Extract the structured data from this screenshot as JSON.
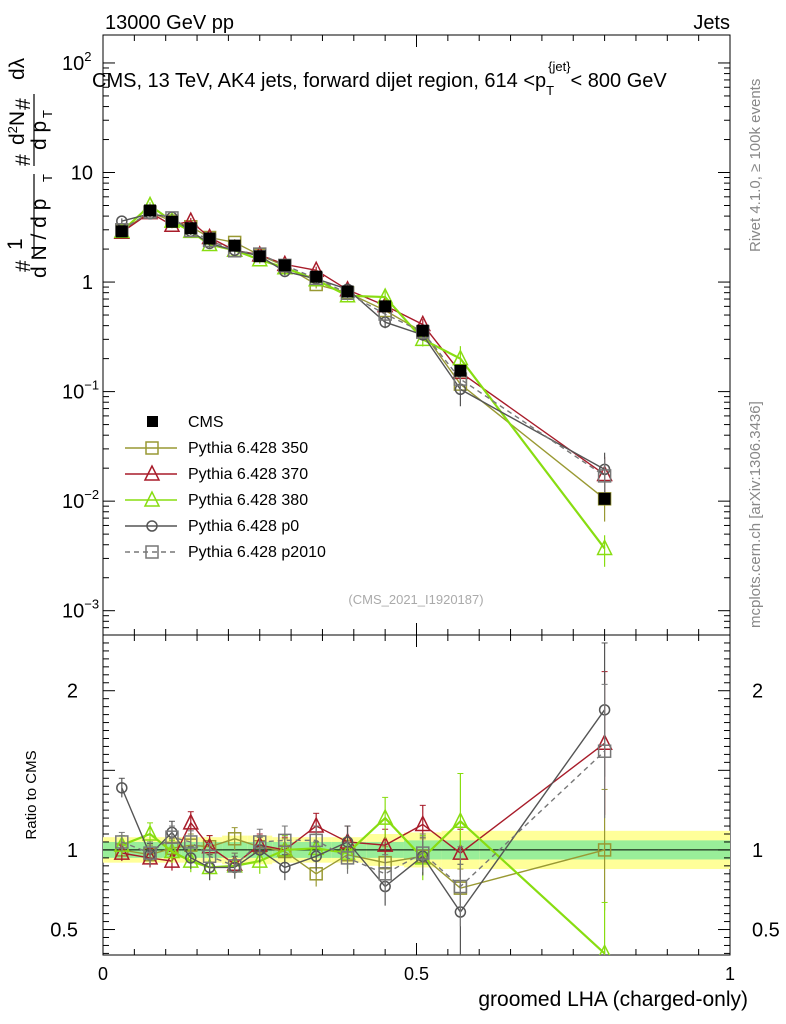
{
  "header": {
    "left": "13000 GeV pp",
    "right": "Jets"
  },
  "side_labels": {
    "rivet": "Rivet 4.1.0, ≥ 100k events",
    "mcplots": "mcplots.cern.ch [arXiv:1306.3436]"
  },
  "chart_data": {
    "type": "line",
    "title": "CMS, 13 TeV, AK4 jets, forward dijet region, 614 <p_T^{jet}< 800 GeV",
    "title_parts": {
      "main": "CMS, 13 TeV, AK4 jets, forward dijet region, 614 <p",
      "sub": "T",
      "sup": "{jet}",
      "tail": "< 800 GeV"
    },
    "watermark": "(CMS_2021_I1920187)",
    "xlabel": "groomed LHA (charged-only)",
    "ylabel": "1/dN/dp_T d²N/dp_T dλ",
    "ylabel_parts": {
      "hash1": "#",
      "one": "1",
      "dN": "d N / d p",
      "T1": "T",
      "hash2": "#",
      "d2N": "d",
      "two": "2",
      "N": "N",
      "hash3": "#",
      "dp": "d p",
      "T2": "T",
      "dl": "d",
      "lambda": "λ"
    },
    "ratio_ylabel": "Ratio to CMS",
    "xlim": [
      0,
      1
    ],
    "x_ticks": [
      "0",
      "0.5",
      "1"
    ],
    "main_ylim": [
      0.0006,
      180
    ],
    "main_yscale": "log",
    "main_y_ticks": [
      {
        "v": 100,
        "base": "10",
        "exp": "2"
      },
      {
        "v": 10,
        "base": "10",
        "exp": ""
      },
      {
        "v": 1,
        "base": "1",
        "exp": ""
      },
      {
        "v": 0.1,
        "base": "10",
        "exp": "−1"
      },
      {
        "v": 0.01,
        "base": "10",
        "exp": "−2"
      },
      {
        "v": 0.001,
        "base": "10",
        "exp": "−3"
      }
    ],
    "ratio_ylim": [
      0.34,
      2.35
    ],
    "ratio_y_ticks": [
      "0.5",
      "1",
      "2"
    ],
    "ratio_y_tick_values": [
      0.5,
      1,
      2
    ],
    "bin_edges": [
      0.0,
      0.055,
      0.095,
      0.125,
      0.155,
      0.19,
      0.23,
      0.27,
      0.315,
      0.365,
      0.42,
      0.48,
      0.54,
      0.6,
      1.0
    ],
    "x": [
      0.03,
      0.075,
      0.11,
      0.14,
      0.17,
      0.21,
      0.25,
      0.29,
      0.34,
      0.39,
      0.45,
      0.51,
      0.57,
      0.8
    ],
    "cms": {
      "name": "CMS",
      "values": [
        2.9,
        4.5,
        3.55,
        3.1,
        2.5,
        2.15,
        1.72,
        1.42,
        1.12,
        0.82,
        0.6,
        0.36,
        0.155,
        0.0105
      ],
      "band_inner": [
        0.05,
        0.05,
        0.05,
        0.05,
        0.05,
        0.05,
        0.05,
        0.05,
        0.05,
        0.05,
        0.05,
        0.06,
        0.06,
        0.06
      ],
      "band_outer": [
        0.08,
        0.08,
        0.08,
        0.08,
        0.08,
        0.09,
        0.09,
        0.08,
        0.08,
        0.08,
        0.1,
        0.11,
        0.12,
        0.12
      ]
    },
    "series": [
      {
        "name": "Pythia 6.428 350",
        "color": "#999933",
        "marker": "square",
        "dashed": false,
        "values": [
          2.95,
          4.35,
          3.6,
          3.2,
          2.55,
          2.3,
          1.76,
          1.4,
          0.95,
          0.8,
          0.55,
          0.35,
          0.117,
          0.0105
        ],
        "ratio": [
          1.0,
          0.97,
          1.01,
          1.03,
          1.02,
          1.07,
          1.02,
          0.99,
          0.85,
          0.97,
          0.92,
          0.96,
          0.76,
          1.0
        ],
        "ratio_err": [
          0.05,
          0.06,
          0.06,
          0.07,
          0.07,
          0.07,
          0.07,
          0.08,
          0.08,
          0.09,
          0.1,
          0.11,
          0.12,
          0.38
        ]
      },
      {
        "name": "Pythia 6.428 370",
        "color": "#a81c2a",
        "marker": "triangle",
        "dashed": false,
        "values": [
          2.85,
          4.3,
          3.3,
          3.6,
          2.55,
          1.95,
          1.77,
          1.45,
          1.28,
          0.85,
          0.61,
          0.41,
          0.15,
          0.0175
        ],
        "ratio": [
          0.98,
          0.95,
          0.93,
          1.17,
          1.02,
          0.91,
          1.03,
          1.0,
          1.15,
          1.05,
          1.03,
          1.16,
          0.98,
          1.67
        ],
        "ratio_err": [
          0.05,
          0.06,
          0.06,
          0.07,
          0.07,
          0.07,
          0.07,
          0.08,
          0.08,
          0.1,
          0.1,
          0.12,
          0.15,
          0.45
        ]
      },
      {
        "name": "Pythia 6.428 380",
        "color": "#88dd11",
        "marker": "triangle",
        "dashed": false,
        "values": [
          2.9,
          5.0,
          3.6,
          2.9,
          2.2,
          1.95,
          1.6,
          1.35,
          1.05,
          0.75,
          0.73,
          0.3,
          0.2,
          0.0037
        ],
        "ratio": [
          1.03,
          1.1,
          0.99,
          0.93,
          0.89,
          0.9,
          0.93,
          1.0,
          1.01,
          0.98,
          1.2,
          0.95,
          1.18,
          0.35
        ],
        "ratio_err": [
          0.06,
          0.07,
          0.07,
          0.07,
          0.08,
          0.08,
          0.08,
          0.09,
          0.09,
          0.1,
          0.13,
          0.14,
          0.3,
          0.32
        ]
      },
      {
        "name": "Pythia 6.428 p0",
        "color": "#555555",
        "marker": "circle",
        "dashed": false,
        "values": [
          3.6,
          4.2,
          3.9,
          2.9,
          2.25,
          1.95,
          1.73,
          1.25,
          1.07,
          0.86,
          0.43,
          0.33,
          0.105,
          0.0195
        ],
        "ratio": [
          1.39,
          0.97,
          1.11,
          0.95,
          0.89,
          0.89,
          1.0,
          0.89,
          0.96,
          1.05,
          0.77,
          0.96,
          0.61,
          1.88
        ],
        "ratio_err": [
          0.06,
          0.07,
          0.07,
          0.07,
          0.08,
          0.07,
          0.08,
          0.08,
          0.09,
          0.1,
          0.12,
          0.12,
          0.3,
          0.42
        ]
      },
      {
        "name": "Pythia 6.428 p2010",
        "color": "#777777",
        "marker": "square",
        "dashed": true,
        "values": [
          3.0,
          4.35,
          3.85,
          2.95,
          2.4,
          1.93,
          1.8,
          1.42,
          1.08,
          0.79,
          0.51,
          0.35,
          0.13,
          0.017
        ],
        "ratio": [
          1.05,
          0.98,
          1.08,
          1.05,
          0.96,
          0.9,
          1.05,
          1.06,
          1.06,
          0.95,
          0.85,
          0.98,
          0.77,
          1.62
        ],
        "ratio_err": [
          0.06,
          0.07,
          0.07,
          0.07,
          0.08,
          0.08,
          0.08,
          0.09,
          0.09,
          0.1,
          0.12,
          0.12,
          0.25,
          0.42
        ]
      }
    ],
    "legend_position": "lower-left"
  }
}
